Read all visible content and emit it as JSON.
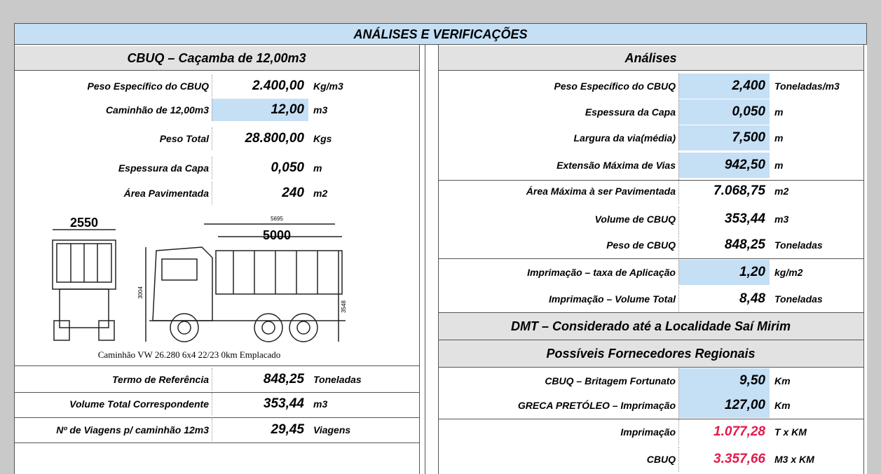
{
  "header": {
    "title": "ANÁLISES E VERIFICAÇÕES"
  },
  "left": {
    "title": "CBUQ – Caçamba de 12,00m3",
    "rows": [
      {
        "label": "Peso Específico do CBUQ",
        "value": "2.400,00",
        "unit": "Kg/m3"
      },
      {
        "label": "Caminhão de 12,00m3",
        "value": "12,00",
        "unit": "m3"
      },
      {
        "label": "Peso Total",
        "value": "28.800,00",
        "unit": "Kgs"
      },
      {
        "label": "Espessura da Capa",
        "value": "0,050",
        "unit": "m"
      },
      {
        "label": "Área Pavimentada",
        "value": "240",
        "unit": "m2"
      }
    ],
    "figure": {
      "dimensions": [
        "2550",
        "5000",
        "5695",
        "3004",
        "3548"
      ],
      "caption": "Caminhão VW 26.280 6x4 22/23 0km Emplacado"
    },
    "summary": [
      {
        "label": "Termo de Referência",
        "value": "848,25",
        "unit": "Toneladas"
      },
      {
        "label": "Volume Total Correspondente",
        "value": "353,44",
        "unit": "m3"
      },
      {
        "label": "Nº de Viagens p/ caminhão 12m3",
        "value": "29,45",
        "unit": "Viagens"
      }
    ]
  },
  "right": {
    "title": "Análises",
    "rows": [
      {
        "label": "Peso Específico do CBUQ",
        "value": "2,400",
        "unit": "Toneladas/m3"
      },
      {
        "label": "Espessura da Capa",
        "value": "0,050",
        "unit": "m"
      },
      {
        "label": "Largura da via(média)",
        "value": "7,500",
        "unit": "m"
      },
      {
        "label": "Extensão Máxima de Vias",
        "value": "942,50",
        "unit": "m"
      },
      {
        "label": "Área Máxima à ser Pavimentada",
        "value": "7.068,75",
        "unit": "m2"
      },
      {
        "label": "Volume  de CBUQ",
        "value": "353,44",
        "unit": "m3"
      },
      {
        "label": "Peso  de CBUQ",
        "value": "848,25",
        "unit": "Toneladas"
      },
      {
        "label": "Imprimação – taxa de Aplicação",
        "value": "1,20",
        "unit": "kg/m2"
      },
      {
        "label": "Imprimação – Volume Total",
        "value": "8,48",
        "unit": "Toneladas"
      }
    ],
    "dmt_title": "DMT – Considerado até a Localidade Saí Mirim",
    "suppliers_title": "Possíveis Fornecedores Regionais",
    "suppliers": [
      {
        "label": "CBUQ – Britagem Fortunato",
        "value": "9,50",
        "unit": "Km"
      },
      {
        "label": "GRECA PRETÓLEO – Imprimação",
        "value": "127,00",
        "unit": "Km"
      }
    ],
    "results": [
      {
        "label": "Imprimação",
        "value": "1.077,28",
        "unit": "T x KM"
      },
      {
        "label": "CBUQ",
        "value": "3.357,66",
        "unit": "M3 x KM"
      }
    ]
  }
}
